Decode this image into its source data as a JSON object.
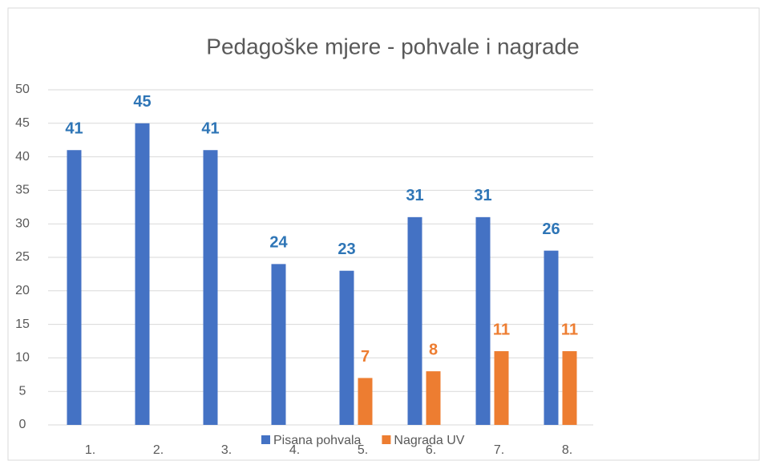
{
  "chart_data": {
    "type": "bar",
    "title": "Pedagoške mjere - pohvale i nagrade",
    "categories": [
      "1.",
      "2.",
      "3.",
      "4.",
      "5.",
      "6.",
      "7.",
      "8."
    ],
    "series": [
      {
        "name": "Pisana pohvala",
        "color": "#4472c4",
        "values": [
          41,
          45,
          41,
          24,
          23,
          31,
          31,
          26
        ]
      },
      {
        "name": "Nagrada UV",
        "color": "#ed7d31",
        "values": [
          null,
          null,
          null,
          null,
          7,
          8,
          11,
          11
        ]
      }
    ],
    "ylim": [
      0,
      50
    ],
    "yticks": [
      0,
      5,
      10,
      15,
      20,
      25,
      30,
      35,
      40,
      45,
      50
    ],
    "grid": true,
    "legend": "bottom"
  }
}
